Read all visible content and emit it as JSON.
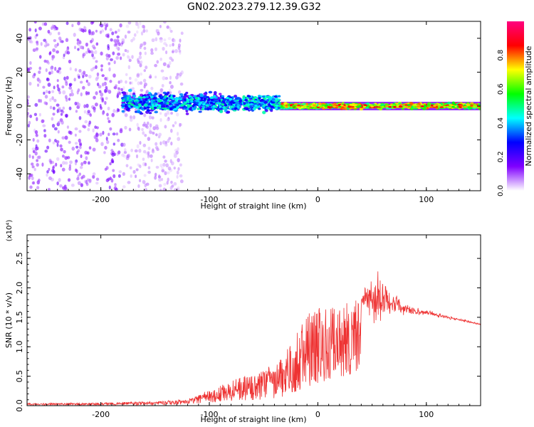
{
  "title": "GN02.2023.279.12.39.G32",
  "chart_data": [
    {
      "type": "heatmap",
      "xlabel": "Height of straight line (km)",
      "ylabel": "Frequency (Hz)",
      "xlim": [
        -268,
        150
      ],
      "ylim": [
        -50,
        50
      ],
      "x_ticks": [
        -200,
        -100,
        0,
        100
      ],
      "y_ticks": [
        -40,
        -20,
        0,
        20,
        40
      ],
      "colorbar": {
        "label": "Normalized spectral amplitude",
        "range": [
          0,
          1
        ],
        "ticks": [
          0.0,
          0.2,
          0.4,
          0.6,
          0.8
        ],
        "colormap": [
          "#ffffff",
          "#8000ff",
          "#0000ff",
          "#00ffff",
          "#00ff00",
          "#ffff00",
          "#ff0000",
          "#ff0080"
        ]
      },
      "bands": [
        {
          "x": [
            -268,
            -180
          ],
          "freq_center": 0,
          "spread": 50,
          "amplitude": 0.12
        },
        {
          "x": [
            -180,
            -125
          ],
          "freq_center": 0,
          "spread": 50,
          "amplitude": 0.06
        },
        {
          "x": [
            -180,
            -90
          ],
          "freq_center": 2,
          "spread": 8,
          "amplitude": 0.3
        },
        {
          "x": [
            -90,
            -35
          ],
          "freq_center": 1,
          "spread": 6,
          "amplitude": 0.35
        },
        {
          "x": [
            -35,
            150
          ],
          "freq_center": 0,
          "spread": 2,
          "amplitude": 0.75
        }
      ]
    },
    {
      "type": "line",
      "ylabel": "SNR (10 * v/v)",
      "y_multiplier": "(x10⁴)",
      "xlabel": "Height of straight line (km)",
      "xlim": [
        -268,
        150
      ],
      "ylim": [
        0,
        2.9
      ],
      "x_ticks": [
        -200,
        -100,
        0,
        100
      ],
      "y_ticks": [
        0.0,
        0.5,
        1.0,
        1.5,
        2.0,
        2.5
      ],
      "y_tick_labels": [
        "0.0",
        "0.5",
        "1.0",
        "1.5",
        "2.0",
        "2.5"
      ],
      "series_color": "#ee3333",
      "envelope": {
        "x": [
          -268,
          -200,
          -150,
          -120,
          -100,
          -80,
          -60,
          -40,
          -30,
          -20,
          -10,
          0,
          10,
          20,
          30,
          40,
          50,
          60,
          70,
          80,
          90,
          100,
          120,
          150
        ],
        "y": [
          0.03,
          0.03,
          0.04,
          0.06,
          0.15,
          0.25,
          0.3,
          0.4,
          0.55,
          0.8,
          1.05,
          1.25,
          1.45,
          1.6,
          1.7,
          1.78,
          1.82,
          1.8,
          1.72,
          1.65,
          1.6,
          1.58,
          1.5,
          1.38
        ],
        "noise": [
          0.01,
          0.02,
          0.03,
          0.05,
          0.12,
          0.2,
          0.25,
          0.3,
          0.35,
          0.45,
          0.5,
          0.4,
          0.25,
          0.1,
          0.06,
          0.08,
          0.45,
          0.6,
          0.3,
          0.15,
          0.08,
          0.05,
          0.03,
          0.02
        ]
      }
    }
  ]
}
